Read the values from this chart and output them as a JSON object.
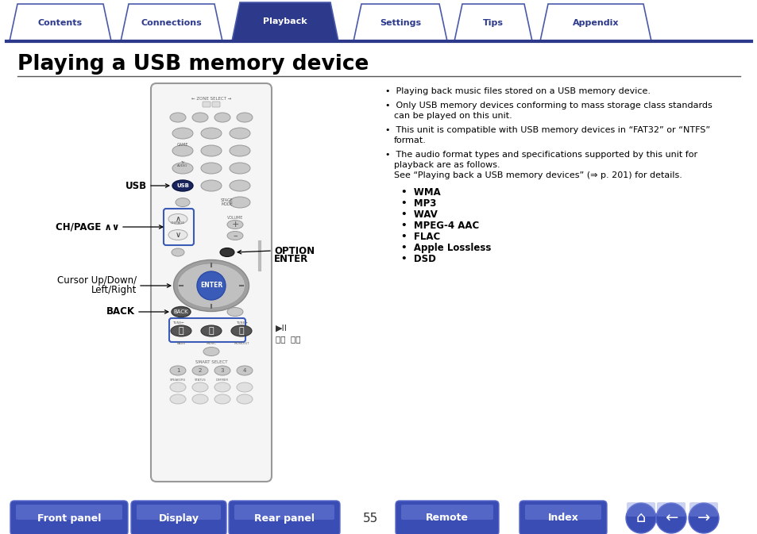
{
  "bg_color": "#ffffff",
  "tab_labels": [
    "Contents",
    "Connections",
    "Playback",
    "Settings",
    "Tips",
    "Appendix"
  ],
  "active_tab": 2,
  "tab_color_active": "#2d3a8c",
  "tab_color_inactive": "#ffffff",
  "tab_text_color_active": "#ffffff",
  "tab_text_color_inactive": "#2d3a8c",
  "tab_border_color": "#4a5aaa",
  "tab_line_color": "#2d3a8c",
  "title": "Playing a USB memory device",
  "title_color": "#000000",
  "title_fontsize": 19,
  "divider_color": "#555555",
  "bullet_points": [
    [
      "Playing back music files stored on a USB memory device."
    ],
    [
      "Only USB memory devices conforming to mass storage class standards",
      "can be played on this unit."
    ],
    [
      "This unit is compatible with USB memory devices in “FAT32” or “NTFS”",
      "format."
    ],
    [
      "The audio format types and specifications supported by this unit for",
      "playback are as follows.",
      "See “Playing back a USB memory devices” (⇒ p. 201) for details."
    ]
  ],
  "format_labels": [
    "WMA",
    "MP3",
    "WAV",
    "MPEG-4 AAC",
    "FLAC",
    "Apple Lossless",
    "DSD"
  ],
  "bottom_buttons": [
    "Front panel",
    "Display",
    "Rear panel",
    "Remote",
    "Index"
  ],
  "bottom_btn_color": "#3a4db5",
  "bottom_btn_text_color": "#ffffff",
  "page_number": "55",
  "remote_btn_gray": "#c8c8c8",
  "remote_btn_blue": "#3a5cb8",
  "remote_body_color": "#f5f5f5",
  "remote_border_color": "#999999"
}
